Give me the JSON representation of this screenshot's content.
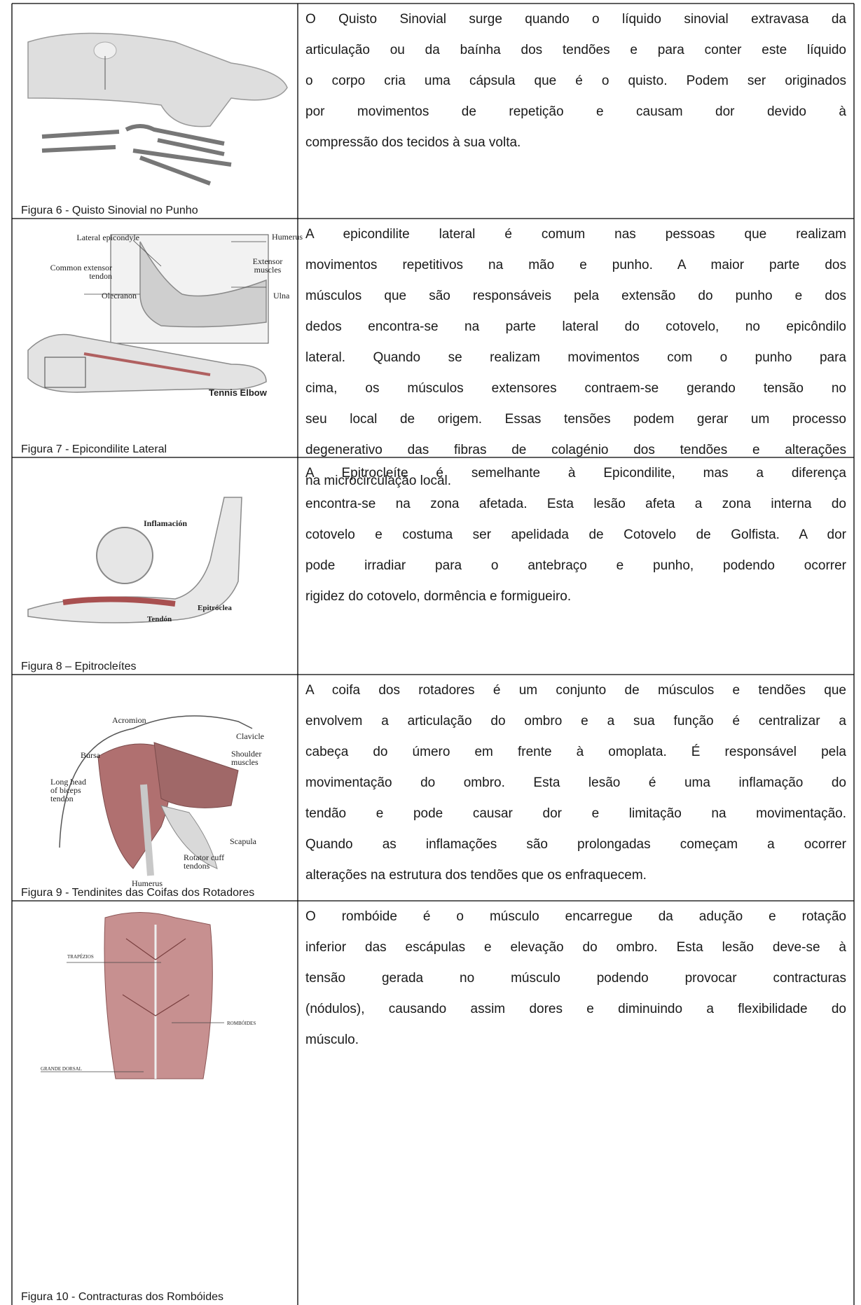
{
  "rows": [
    {
      "figure": {
        "caption": "Figura 6 - Quisto Sinovial no Punho",
        "labels": []
      },
      "lines": [
        "O Quisto Sinovial surge quando o líquido sinovial extravasa da",
        "articulação ou da baínha dos tendões e para conter este líquido",
        "o corpo cria uma cápsula que é o quisto. Podem ser originados",
        "por movimentos de repetição e causam dor devido à",
        "compressão dos tecidos à sua volta."
      ]
    },
    {
      "figure": {
        "caption": "Figura 7 - Epicondilite Lateral",
        "labels": [
          "Lateral epicondyle",
          "Humerus",
          "Common extensor tendon",
          "Extensor muscles",
          "Olecranon",
          "Ulna",
          "Tennis Elbow"
        ]
      },
      "lines": [
        "A epicondilite lateral é comum nas pessoas que realizam",
        "movimentos repetitivos na mão e punho. A maior parte dos",
        "músculos que são responsáveis pela extensão do punho e dos",
        "dedos encontra-se na parte lateral do cotovelo, no epicôndilo",
        "lateral. Quando se realizam movimentos com o punho para",
        "cima, os músculos extensores contraem-se gerando tensão no",
        "seu local de origem. Essas tensões podem gerar um processo",
        "degenerativo das fibras de colagénio dos tendões e alterações",
        "na microcirculação local."
      ]
    },
    {
      "figure": {
        "caption": "Figura 8 – Epitrocleítes",
        "labels": [
          "Inflamación",
          "Tendón",
          "Epitróclea"
        ]
      },
      "lines": [
        "A Epitrocleíte é semelhante à Epicondilite, mas a diferença",
        "encontra-se na zona afetada. Esta lesão afeta a zona interna do",
        "cotovelo e costuma ser apelidada de Cotovelo de Golfista. A dor",
        "pode irradiar para o antebraço e punho, podendo ocorrer",
        "rigidez do cotovelo, dormência e formigueiro."
      ]
    },
    {
      "figure": {
        "caption": "Figura 9 - Tendinites das Coifas dos Rotadores",
        "labels": [
          "Acromion",
          "Clavicle",
          "Bursa",
          "Shoulder muscles",
          "Long head of biceps tendon",
          "Scapula",
          "Rotator cuff tendons",
          "Humerus"
        ]
      },
      "lines": [
        "A coifa dos rotadores é um conjunto de músculos e tendões que",
        "envolvem a articulação do ombro e a sua função é centralizar a",
        "cabeça do úmero em frente à omoplata. É responsável pela",
        "movimentação do ombro. Esta lesão é uma inflamação do",
        "tendão e pode causar dor e limitação na movimentação.",
        "Quando as inflamações são prolongadas começam a ocorrer",
        "alterações na estrutura dos tendões que os enfraquecem."
      ]
    },
    {
      "figure": {
        "caption": "Figura 10 - Contracturas dos Rombóides",
        "labels": [
          "TRAPÉZIOS",
          "ROMBÓIDES",
          "GRANDE DORSAL"
        ]
      },
      "lines": [
        "O rombóide é o músculo encarregue da adução e rotação",
        "inferior das escápulas e elevação do ombro. Esta lesão deve-se à",
        "tensão gerada no músculo podendo provocar contracturas",
        "(nódulos), causando assim dores e diminuindo a flexibilidade do",
        "músculo."
      ]
    }
  ]
}
